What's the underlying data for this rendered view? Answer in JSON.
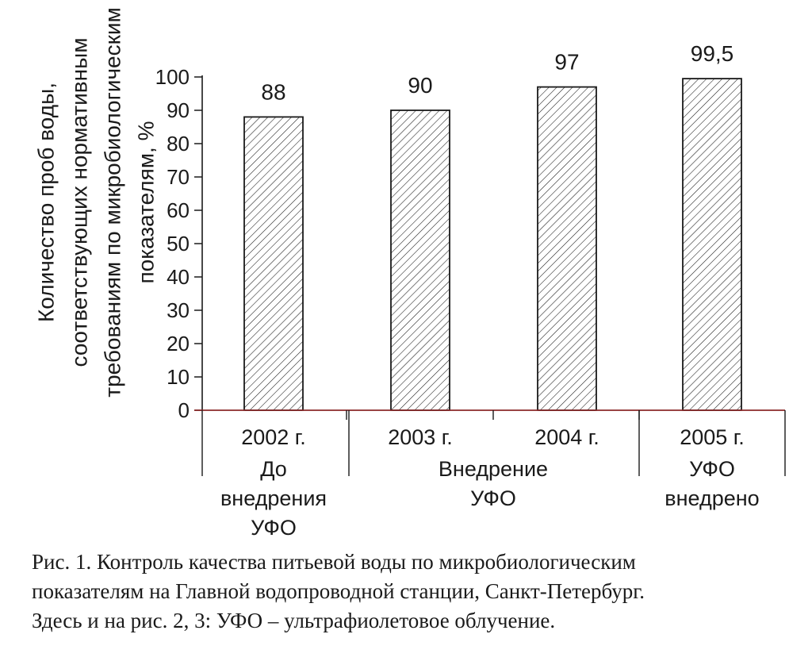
{
  "chart_data": {
    "type": "bar",
    "categories": [
      "2002 г.",
      "2003 г.",
      "2004 г.",
      "2005 г."
    ],
    "values": [
      88,
      90,
      97,
      99.5
    ],
    "value_labels": [
      "88",
      "90",
      "97",
      "99,5"
    ],
    "ylabel_lines": [
      "Количество проб воды,",
      "соответствующих нормативным",
      "требованиям по микробиологическим",
      "показателям, %"
    ],
    "yticks": [
      0,
      10,
      20,
      30,
      40,
      50,
      60,
      70,
      80,
      90,
      100
    ],
    "ylim": [
      0,
      100
    ],
    "groups": [
      {
        "lines": [
          "До",
          "внедрения",
          "УФО"
        ],
        "categories": [
          0
        ]
      },
      {
        "lines": [
          "Внедрение",
          "УФО"
        ],
        "categories": [
          1,
          2
        ]
      },
      {
        "lines": [
          "УФО",
          "внедрено"
        ],
        "categories": [
          3
        ]
      }
    ],
    "bar_fill": "hatched",
    "grid": false,
    "colors": {
      "ink": "#1a1a1a",
      "axis": "#8b2a2a"
    }
  },
  "caption": {
    "line1": "Рис. 1. Контроль качества питьевой воды по микробиологическим",
    "line2": "показателям на Главной водопроводной станции, Санкт-Петербург.",
    "line3": "Здесь и на рис. 2, 3: УФО – ультрафиолетовое облучение."
  }
}
